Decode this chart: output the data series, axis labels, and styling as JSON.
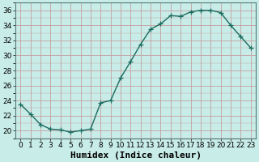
{
  "x": [
    0,
    1,
    2,
    3,
    4,
    5,
    6,
    7,
    8,
    9,
    10,
    11,
    12,
    13,
    14,
    15,
    16,
    17,
    18,
    19,
    20,
    21,
    22,
    23
  ],
  "y": [
    23.5,
    22.2,
    20.8,
    20.2,
    20.1,
    19.8,
    20.0,
    20.2,
    23.7,
    24.0,
    27.0,
    29.2,
    31.5,
    33.5,
    34.2,
    35.3,
    35.2,
    35.8,
    36.0,
    36.0,
    35.7,
    34.0,
    32.5,
    31.0
  ],
  "line_color": "#1a6b5e",
  "marker": "+",
  "marker_size": 4,
  "bg_color": "#c8ece8",
  "grid_color_major": "#c4a0a0",
  "xlabel": "Humidex (Indice chaleur)",
  "xlabel_fontsize": 8,
  "ylabel_ticks": [
    20,
    22,
    24,
    26,
    28,
    30,
    32,
    34,
    36
  ],
  "ylim": [
    19.0,
    37.0
  ],
  "xlim": [
    -0.5,
    23.5
  ],
  "xtick_labels": [
    "0",
    "1",
    "2",
    "3",
    "4",
    "5",
    "6",
    "7",
    "8",
    "9",
    "10",
    "11",
    "12",
    "13",
    "14",
    "15",
    "16",
    "17",
    "18",
    "19",
    "20",
    "21",
    "22",
    "23"
  ],
  "tick_fontsize": 6.5,
  "line_width": 1.0
}
